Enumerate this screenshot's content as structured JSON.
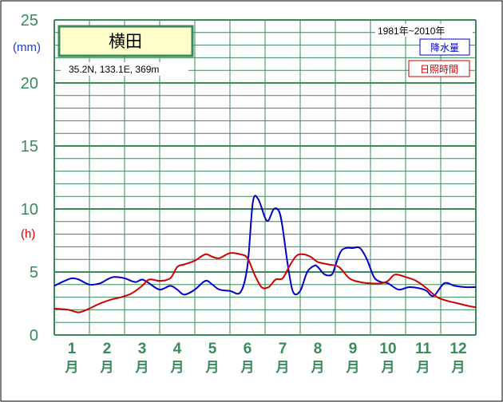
{
  "chart_data": {
    "type": "line",
    "station": "横田",
    "location": "35.2N,  133.1E,  369m",
    "period": "1981年~2010年",
    "y_unit_left_top": "(mm)",
    "y_unit_left_mid": "(h)",
    "ylim": [
      0,
      25
    ],
    "y_ticks": [
      "0",
      "5",
      "10",
      "15",
      "20",
      "25"
    ],
    "months": [
      "1",
      "2",
      "3",
      "4",
      "5",
      "6",
      "7",
      "8",
      "9",
      "10",
      "11",
      "12"
    ],
    "month_suffix": "月",
    "x_range": [
      0.5,
      12.5
    ],
    "grid": true,
    "series": [
      {
        "name": "降水量",
        "color": "#0000c8",
        "x": [
          0.5,
          0.8,
          1.0,
          1.2,
          1.5,
          1.8,
          2.0,
          2.2,
          2.5,
          2.8,
          3.0,
          3.2,
          3.5,
          3.8,
          4.0,
          4.2,
          4.5,
          4.8,
          5.0,
          5.2,
          5.5,
          5.8,
          6.0,
          6.15,
          6.3,
          6.5,
          6.6,
          6.75,
          6.9,
          7.0,
          7.15,
          7.3,
          7.5,
          7.7,
          7.9,
          8.0,
          8.2,
          8.4,
          8.5,
          8.65,
          8.8,
          9.0,
          9.2,
          9.4,
          9.6,
          9.8,
          10.0,
          10.3,
          10.6,
          10.9,
          11.1,
          11.3,
          11.6,
          11.9,
          12.2,
          12.5
        ],
        "y": [
          3.9,
          4.3,
          4.5,
          4.4,
          4.0,
          4.1,
          4.4,
          4.6,
          4.5,
          4.2,
          4.4,
          4.1,
          3.6,
          3.9,
          3.6,
          3.2,
          3.6,
          4.3,
          4.0,
          3.6,
          3.5,
          3.4,
          5.5,
          10.5,
          10.8,
          9.3,
          9.1,
          10.0,
          9.8,
          8.5,
          5.5,
          3.4,
          3.5,
          5.0,
          5.5,
          5.4,
          4.8,
          4.8,
          5.5,
          6.6,
          6.9,
          6.9,
          6.9,
          6.0,
          4.6,
          4.2,
          4.1,
          3.6,
          3.8,
          3.7,
          3.5,
          3.1,
          4.1,
          3.9,
          3.8,
          3.8
        ]
      },
      {
        "name": "日照時間",
        "color": "#d00000",
        "x": [
          0.5,
          0.9,
          1.2,
          1.5,
          1.8,
          2.1,
          2.4,
          2.7,
          3.0,
          3.2,
          3.5,
          3.8,
          4.0,
          4.2,
          4.5,
          4.8,
          5.0,
          5.2,
          5.5,
          5.8,
          6.0,
          6.2,
          6.4,
          6.6,
          6.8,
          7.0,
          7.2,
          7.4,
          7.6,
          7.8,
          8.0,
          8.3,
          8.6,
          8.9,
          9.2,
          9.5,
          9.8,
          10.0,
          10.2,
          10.5,
          10.8,
          11.1,
          11.4,
          11.7,
          12.0,
          12.3,
          12.5
        ],
        "y": [
          2.1,
          2.0,
          1.8,
          2.1,
          2.5,
          2.8,
          3.0,
          3.3,
          3.9,
          4.4,
          4.3,
          4.5,
          5.4,
          5.6,
          5.9,
          6.4,
          6.2,
          6.1,
          6.5,
          6.4,
          6.1,
          4.8,
          3.8,
          3.8,
          4.4,
          4.5,
          5.5,
          6.3,
          6.4,
          6.2,
          5.8,
          5.6,
          5.4,
          4.5,
          4.2,
          4.1,
          4.1,
          4.3,
          4.8,
          4.6,
          4.3,
          3.7,
          3.0,
          2.7,
          2.5,
          2.3,
          2.2
        ]
      }
    ]
  }
}
